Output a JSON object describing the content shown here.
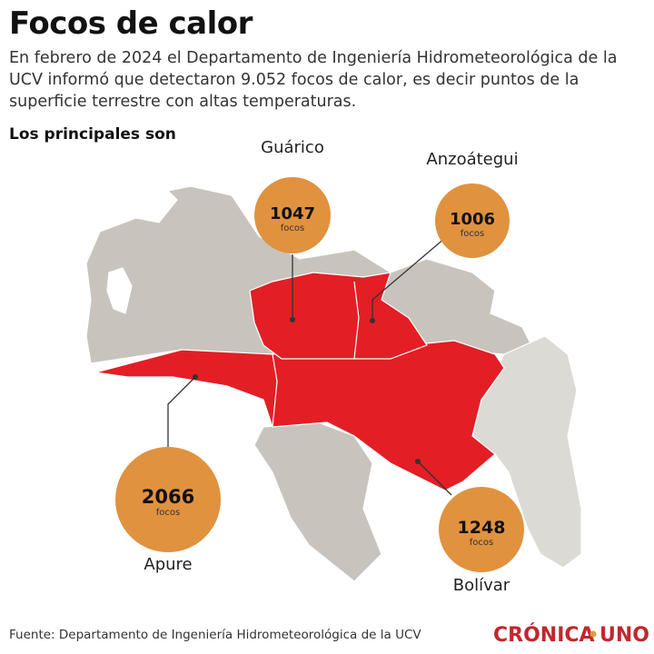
{
  "header": {
    "title": "Focos de calor",
    "subtitle": "En febrero de 2024 el Departamento de Ingeniería Hidrometeorológica de la UCV informó que detectaron 9.052 focos de calor, es decir puntos de la superficie terrestre con altas temperaturas.",
    "subheading": "Los principales son"
  },
  "states": [
    {
      "name": "Guárico",
      "value": 1047,
      "unit": "focos"
    },
    {
      "name": "Anzoátegui",
      "value": 1006,
      "unit": "focos"
    },
    {
      "name": "Apure",
      "value": 2066,
      "unit": "focos"
    },
    {
      "name": "Bolívar",
      "value": 1248,
      "unit": "focos"
    }
  ],
  "footer": {
    "source": "Fuente: Departamento de Ingeniería Hidrometeorológica de la UCV",
    "logo_left": "CRÓNICA",
    "logo_right": "UNO"
  }
}
